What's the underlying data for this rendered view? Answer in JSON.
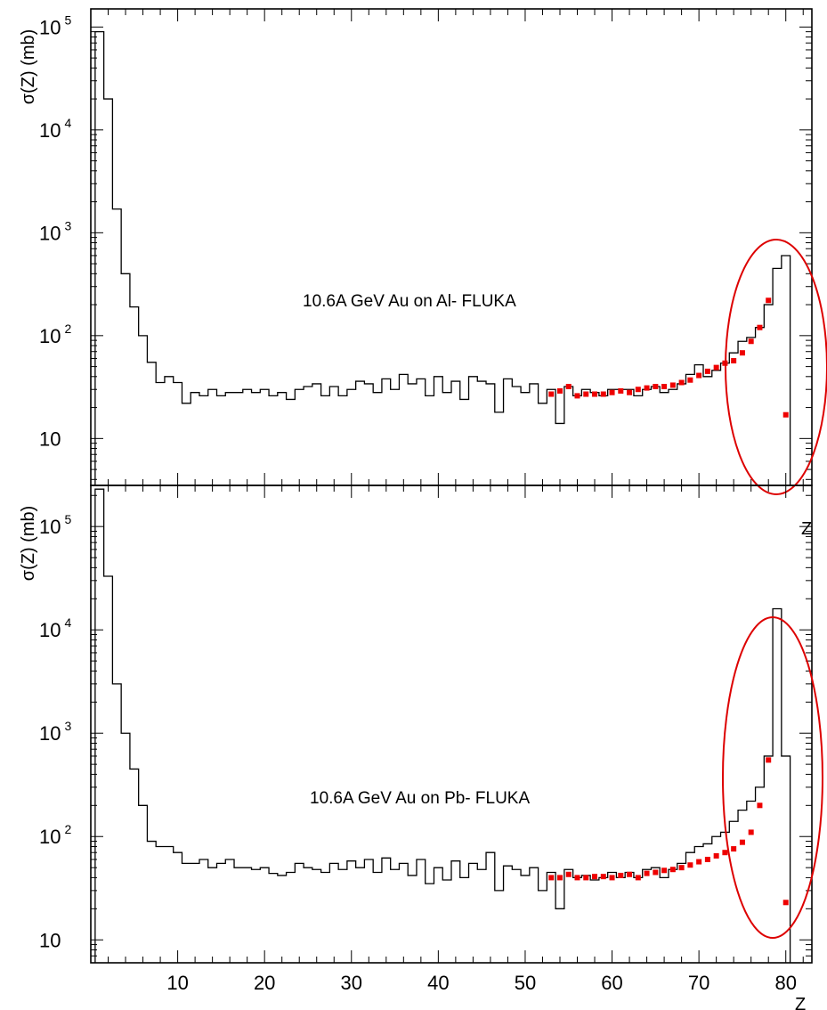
{
  "chart_data": [
    {
      "type": "line",
      "ylabel": "σ(Z) (mb)",
      "xlabel": "Z",
      "y_scale": "log",
      "xlim": [
        0,
        83
      ],
      "ylim": [
        3.5,
        150000
      ],
      "y_ticks": [
        {
          "base": "10",
          "exp": "5",
          "value": 100000
        },
        {
          "base": "10",
          "exp": "4",
          "value": 10000
        },
        {
          "base": "10",
          "exp": "3",
          "value": 1000
        },
        {
          "base": "10",
          "exp": "2",
          "value": 100
        },
        {
          "base": "10",
          "exp": "",
          "value": 10
        }
      ],
      "annotation": "10.6A GeV Au on Al- FLUKA",
      "highlight_color": "#dd0000",
      "series": [
        {
          "style": "histogram",
          "color": "#000000",
          "x": [
            1,
            2,
            3,
            4,
            5,
            6,
            7,
            8,
            9,
            10,
            11,
            12,
            13,
            14,
            15,
            16,
            17,
            18,
            19,
            20,
            21,
            22,
            23,
            24,
            25,
            26,
            27,
            28,
            29,
            30,
            31,
            32,
            33,
            34,
            35,
            36,
            37,
            38,
            39,
            40,
            41,
            42,
            43,
            44,
            45,
            46,
            47,
            48,
            49,
            50,
            51,
            52,
            53,
            54,
            55,
            56,
            57,
            58,
            59,
            60,
            61,
            62,
            63,
            64,
            65,
            66,
            67,
            68,
            69,
            70,
            71,
            72,
            73,
            74,
            75,
            76,
            77,
            78,
            79,
            80
          ],
          "y": [
            90000,
            20000,
            1700,
            400,
            190,
            100,
            55,
            35,
            40,
            35,
            22,
            28,
            26,
            30,
            26,
            28,
            28,
            30,
            28,
            30,
            26,
            28,
            24,
            30,
            32,
            34,
            26,
            32,
            26,
            30,
            36,
            34,
            28,
            38,
            30,
            42,
            34,
            38,
            26,
            40,
            28,
            36,
            24,
            40,
            36,
            34,
            18,
            38,
            32,
            28,
            34,
            22,
            30,
            14,
            32,
            26,
            30,
            28,
            26,
            30,
            30,
            30,
            26,
            30,
            32,
            28,
            30,
            34,
            42,
            52,
            40,
            46,
            54,
            68,
            88,
            96,
            120,
            200,
            450,
            600
          ]
        },
        {
          "style": "points",
          "color": "#ee0000",
          "x": [
            53,
            54,
            55,
            56,
            57,
            58,
            59,
            60,
            61,
            62,
            63,
            64,
            65,
            66,
            67,
            68,
            69,
            70,
            71,
            72,
            73,
            74,
            75,
            76,
            77,
            78,
            80
          ],
          "y": [
            27,
            29,
            32,
            26,
            27,
            27,
            27,
            28,
            29,
            28,
            30,
            31,
            32,
            32,
            33,
            35,
            37,
            41,
            45,
            49,
            54,
            57,
            68,
            88,
            120,
            220,
            17
          ]
        }
      ]
    },
    {
      "type": "line",
      "ylabel": "σ(Z) (mb)",
      "xlabel": "Z",
      "y_scale": "log",
      "xlim": [
        0,
        83
      ],
      "ylim": [
        6,
        250000
      ],
      "x_ticks": [
        10,
        20,
        30,
        40,
        50,
        60,
        70,
        80
      ],
      "y_ticks": [
        {
          "base": "10",
          "exp": "5",
          "value": 100000
        },
        {
          "base": "10",
          "exp": "4",
          "value": 10000
        },
        {
          "base": "10",
          "exp": "3",
          "value": 1000
        },
        {
          "base": "10",
          "exp": "2",
          "value": 100
        },
        {
          "base": "10",
          "exp": "",
          "value": 10
        }
      ],
      "annotation": "10.6A GeV Au on Pb- FLUKA",
      "highlight_color": "#dd0000",
      "series": [
        {
          "style": "histogram",
          "color": "#000000",
          "x": [
            1,
            2,
            3,
            4,
            5,
            6,
            7,
            8,
            9,
            10,
            11,
            12,
            13,
            14,
            15,
            16,
            17,
            18,
            19,
            20,
            21,
            22,
            23,
            24,
            25,
            26,
            27,
            28,
            29,
            30,
            31,
            32,
            33,
            34,
            35,
            36,
            37,
            38,
            39,
            40,
            41,
            42,
            43,
            44,
            45,
            46,
            47,
            48,
            49,
            50,
            51,
            52,
            53,
            54,
            55,
            56,
            57,
            58,
            59,
            60,
            61,
            62,
            63,
            64,
            65,
            66,
            67,
            68,
            69,
            70,
            71,
            72,
            73,
            74,
            75,
            76,
            77,
            78,
            79,
            80
          ],
          "y": [
            230000,
            33000,
            3000,
            1000,
            450,
            200,
            90,
            80,
            80,
            70,
            55,
            55,
            60,
            50,
            55,
            60,
            50,
            50,
            48,
            50,
            44,
            42,
            45,
            55,
            50,
            48,
            45,
            55,
            48,
            58,
            50,
            60,
            45,
            62,
            48,
            55,
            42,
            60,
            35,
            50,
            38,
            58,
            40,
            55,
            48,
            70,
            30,
            52,
            48,
            42,
            50,
            30,
            45,
            20,
            48,
            40,
            42,
            38,
            40,
            45,
            40,
            45,
            40,
            48,
            50,
            40,
            48,
            55,
            70,
            80,
            85,
            100,
            110,
            140,
            180,
            220,
            300,
            600,
            16000,
            600
          ]
        },
        {
          "style": "points",
          "color": "#ee0000",
          "x": [
            53,
            54,
            55,
            56,
            57,
            58,
            59,
            60,
            61,
            62,
            63,
            64,
            65,
            66,
            67,
            68,
            69,
            70,
            71,
            72,
            73,
            74,
            75,
            76,
            77,
            78,
            80
          ],
          "y": [
            40,
            40,
            43,
            40,
            40,
            41,
            41,
            40,
            42,
            43,
            40,
            44,
            45,
            47,
            48,
            50,
            53,
            57,
            60,
            65,
            70,
            76,
            88,
            110,
            200,
            550,
            23
          ]
        }
      ]
    }
  ]
}
